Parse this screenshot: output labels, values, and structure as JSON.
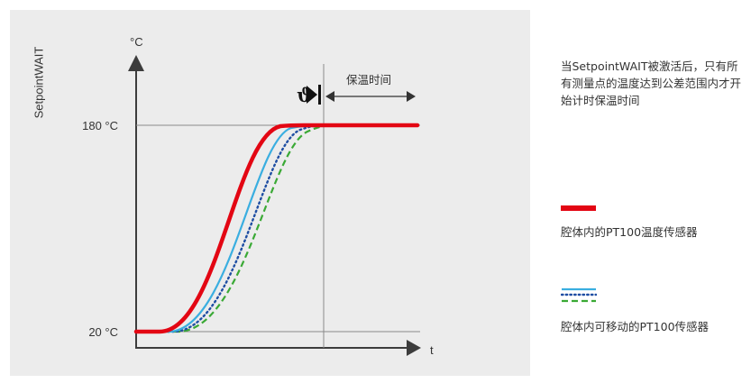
{
  "side_title": "SetpointWAIT",
  "diagram": {
    "unit_label": "°C",
    "y_ticks": [
      "180 °C",
      "20 °C"
    ],
    "x_label": "t",
    "theta_symbol": "ϑ",
    "hold_time_label": "保温时间"
  },
  "description": "当SetpointWAIT被激活后，只有所有测量点的温度达到公差范围内才开始计时保温时间",
  "legend": [
    {
      "label": "腔体内的PT100温度传感器",
      "color": "#e30613"
    },
    {
      "label": "腔体内可移动的PT100传感器",
      "colors": [
        "#3aaee0",
        "#1f4ea3",
        "#3aa935"
      ]
    }
  ],
  "chart_data": {
    "type": "line",
    "ylabel": "°C",
    "xlabel": "t",
    "yticks": [
      20,
      180
    ],
    "series": [
      {
        "name": "腔体内的PT100温度传感器",
        "color": "#e30613",
        "style": "solid",
        "shape": "s-curve",
        "from": 20,
        "to": 180
      },
      {
        "name": "腔体内可移动的PT100传感器",
        "color": "#3aaee0",
        "style": "solid",
        "shape": "s-curve",
        "from": 20,
        "to": 180
      },
      {
        "name": "腔体内可移动的PT100传感器",
        "color": "#1f4ea3",
        "style": "dotted",
        "shape": "s-curve",
        "from": 20,
        "to": 180
      },
      {
        "name": "腔体内可移动的PT100传感器",
        "color": "#3aa935",
        "style": "dashed",
        "shape": "s-curve",
        "from": 20,
        "to": 180
      }
    ]
  }
}
